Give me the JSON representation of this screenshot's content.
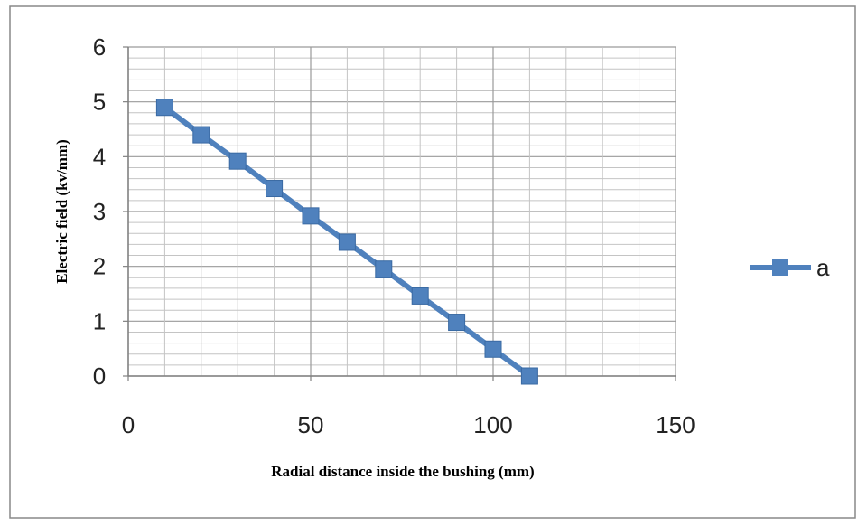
{
  "chart_data": {
    "type": "line",
    "title": "",
    "xlabel": "Radial distance inside the bushing (mm)",
    "ylabel": "Electric field (kv/mm)",
    "xlim": [
      0,
      150
    ],
    "ylim": [
      0,
      6
    ],
    "x_ticks": [
      "0",
      "50",
      "100",
      "150"
    ],
    "y_ticks": [
      "0",
      "1",
      "2",
      "3",
      "4",
      "5",
      "6"
    ],
    "x_minor_step": 10,
    "y_minor_step": 0.2,
    "grid": true,
    "legend_position": "right",
    "marker": "square",
    "series": [
      {
        "name": "a",
        "color": "#4f81bd",
        "x": [
          10,
          20,
          30,
          40,
          50,
          60,
          70,
          80,
          90,
          100,
          110
        ],
        "y": [
          4.9,
          4.4,
          3.92,
          3.42,
          2.92,
          2.44,
          1.95,
          1.46,
          0.98,
          0.49,
          0
        ]
      }
    ]
  }
}
